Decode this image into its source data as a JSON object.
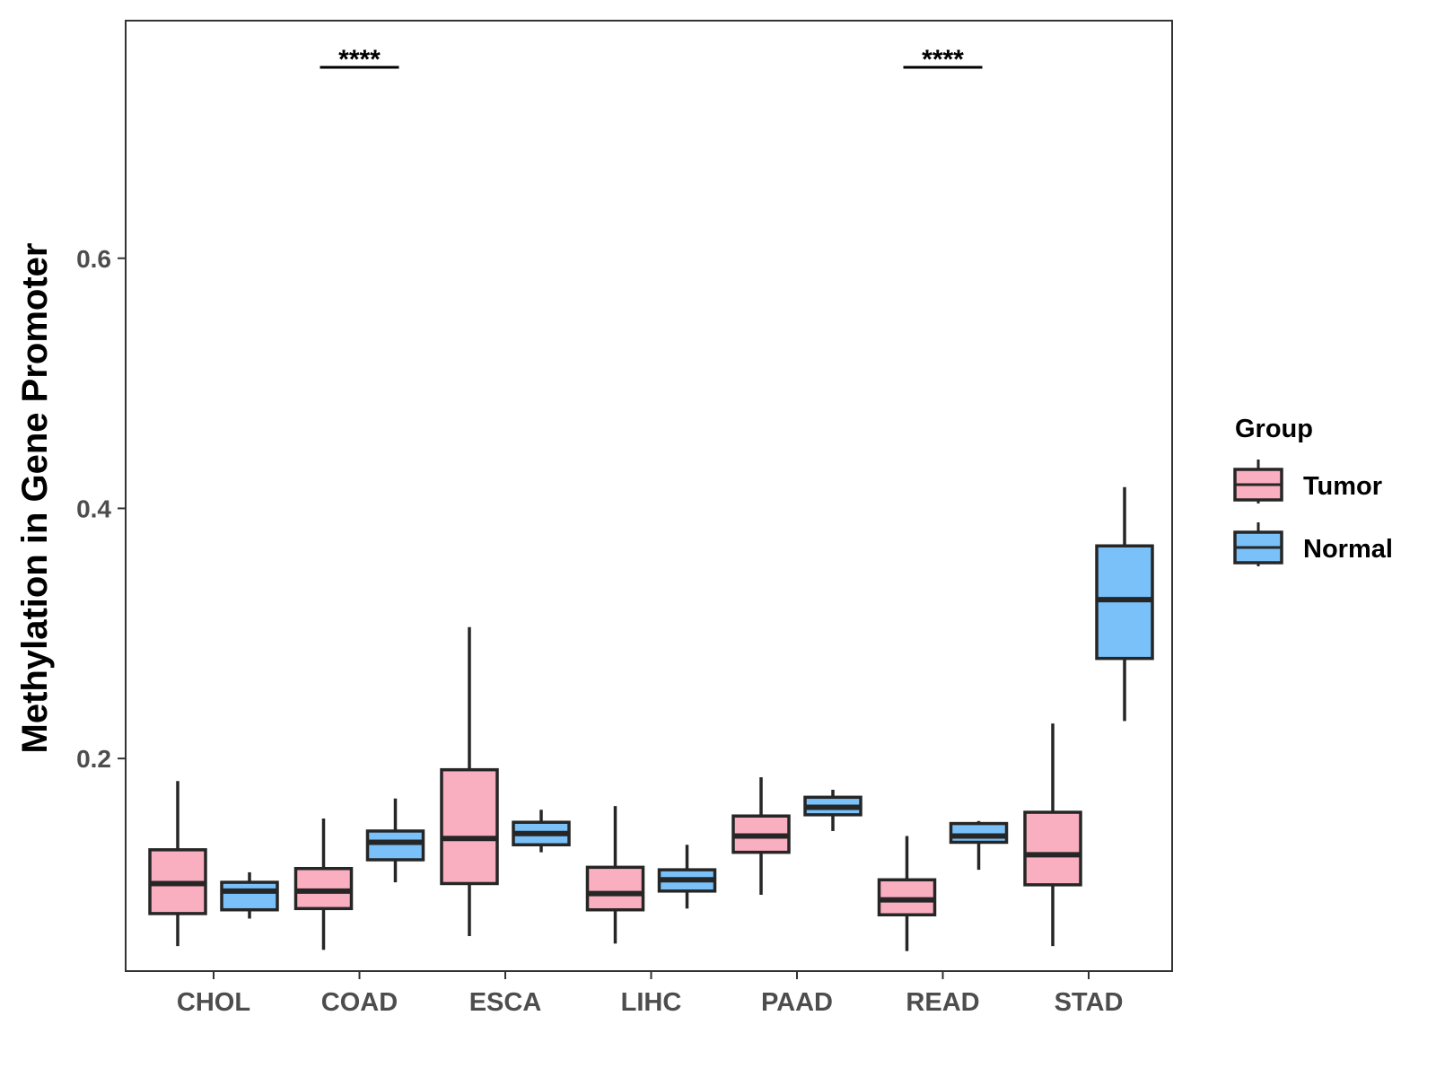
{
  "chart_data": {
    "type": "boxplot",
    "title": "",
    "xlabel": "",
    "ylabel": "Methylation in Gene Promoter",
    "ylim": [
      0.03,
      0.79
    ],
    "yticks": [
      0.2,
      0.4,
      0.6
    ],
    "ytick_labels": [
      "0.2",
      "0.4",
      "0.6"
    ],
    "categories": [
      "CHOL",
      "COAD",
      "ESCA",
      "LIHC",
      "PAAD",
      "READ",
      "STAD"
    ],
    "legend": {
      "title": "Group",
      "position": "right",
      "entries": [
        {
          "name": "Tumor",
          "color": "#f9afc0"
        },
        {
          "name": "Normal",
          "color": "#79c1f8"
        }
      ]
    },
    "series": [
      {
        "name": "Tumor",
        "color": "#f9afc0",
        "boxes": [
          {
            "category": "CHOL",
            "whisker_low": 0.05,
            "q1": 0.076,
            "median": 0.1,
            "q3": 0.127,
            "whisker_high": 0.182
          },
          {
            "category": "COAD",
            "whisker_low": 0.047,
            "q1": 0.08,
            "median": 0.094,
            "q3": 0.112,
            "whisker_high": 0.152
          },
          {
            "category": "ESCA",
            "whisker_low": 0.058,
            "q1": 0.1,
            "median": 0.136,
            "q3": 0.191,
            "whisker_high": 0.305
          },
          {
            "category": "LIHC",
            "whisker_low": 0.052,
            "q1": 0.079,
            "median": 0.092,
            "q3": 0.113,
            "whisker_high": 0.162
          },
          {
            "category": "PAAD",
            "whisker_low": 0.091,
            "q1": 0.125,
            "median": 0.138,
            "q3": 0.154,
            "whisker_high": 0.185
          },
          {
            "category": "READ",
            "whisker_low": 0.046,
            "q1": 0.075,
            "median": 0.087,
            "q3": 0.103,
            "whisker_high": 0.138
          },
          {
            "category": "STAD",
            "whisker_low": 0.05,
            "q1": 0.099,
            "median": 0.123,
            "q3": 0.157,
            "whisker_high": 0.228
          }
        ]
      },
      {
        "name": "Normal",
        "color": "#79c1f8",
        "boxes": [
          {
            "category": "CHOL",
            "whisker_low": 0.072,
            "q1": 0.079,
            "median": 0.094,
            "q3": 0.101,
            "whisker_high": 0.109
          },
          {
            "category": "COAD",
            "whisker_low": 0.101,
            "q1": 0.119,
            "median": 0.133,
            "q3": 0.142,
            "whisker_high": 0.168
          },
          {
            "category": "ESCA",
            "whisker_low": 0.125,
            "q1": 0.131,
            "median": 0.14,
            "q3": 0.149,
            "whisker_high": 0.159
          },
          {
            "category": "LIHC",
            "whisker_low": 0.08,
            "q1": 0.094,
            "median": 0.103,
            "q3": 0.111,
            "whisker_high": 0.131
          },
          {
            "category": "PAAD",
            "whisker_low": 0.142,
            "q1": 0.155,
            "median": 0.161,
            "q3": 0.169,
            "whisker_high": 0.175
          },
          {
            "category": "READ",
            "whisker_low": 0.111,
            "q1": 0.133,
            "median": 0.138,
            "q3": 0.148,
            "whisker_high": 0.15
          },
          {
            "category": "STAD",
            "whisker_low": 0.23,
            "q1": 0.28,
            "median": 0.327,
            "q3": 0.37,
            "whisker_high": 0.417
          }
        ]
      }
    ],
    "annotations": [
      {
        "category": "COAD",
        "text": "****"
      },
      {
        "category": "READ",
        "text": "****"
      }
    ]
  }
}
